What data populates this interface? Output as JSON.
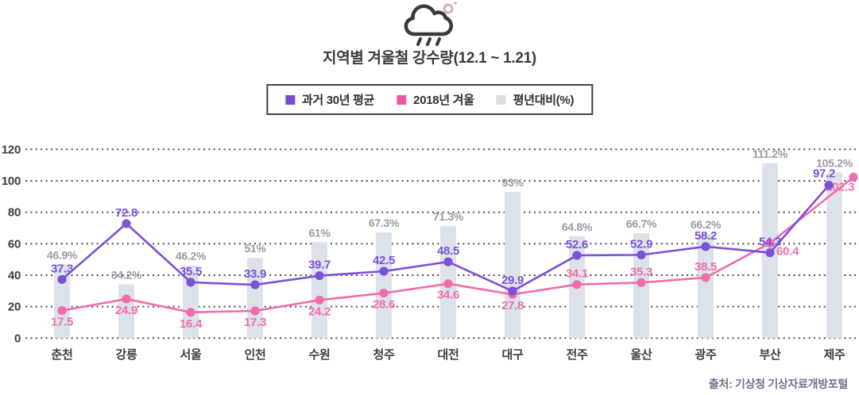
{
  "header": {
    "title": "지역별 겨울철 강수량(12.1 ~ 1.21)"
  },
  "legend": {
    "items": [
      {
        "label": "과거 30년 평균",
        "color": "#7a4ad6",
        "kind": "line-series"
      },
      {
        "label": "2018년 겨울",
        "color": "#ee58a1",
        "kind": "line-series"
      },
      {
        "label": "평년대비(%)",
        "color": "#d9dee6",
        "kind": "bar-series"
      }
    ]
  },
  "source": "출처: 기상청 기상자료개방포털",
  "chart_data": {
    "type": "line+bar combo",
    "title": "지역별 겨울철 강수량(12.1 ~ 1.21)",
    "categories": [
      "춘천",
      "강릉",
      "서울",
      "인천",
      "수원",
      "청주",
      "대전",
      "대구",
      "전주",
      "울산",
      "광주",
      "부산",
      "제주"
    ],
    "series": [
      {
        "name": "과거 30년 평균",
        "type": "line",
        "color": "#7b51d8",
        "values": [
          37.3,
          72.8,
          35.5,
          33.9,
          39.7,
          42.5,
          48.5,
          29.9,
          52.6,
          52.9,
          58.2,
          54.3,
          97.2
        ],
        "labels": [
          "37.3",
          "72.8",
          "35.5",
          "33.9",
          "39.7",
          "42.5",
          "48.5",
          "29.9",
          "52.6",
          "52.9",
          "58.2",
          "54.3",
          "97.2"
        ],
        "label_sides": [
          "above",
          "above",
          "above",
          "above",
          "above",
          "above",
          "above",
          "above",
          "above",
          "above",
          "above",
          "above",
          "above-left"
        ],
        "last_point_dx": -7
      },
      {
        "name": "2018년 겨울",
        "type": "line",
        "color": "#f06dab",
        "values": [
          17.5,
          24.9,
          16.4,
          17.3,
          24.2,
          28.6,
          34.6,
          27.8,
          34.1,
          35.3,
          38.5,
          60.4,
          102.3
        ],
        "labels": [
          "17.5",
          "24.9",
          "16.4",
          "17.3",
          "24.2",
          "28.6",
          "34.6",
          "27.8",
          "34.1",
          "35.3",
          "38.5",
          "60.4",
          "102.3"
        ],
        "label_sides": [
          "below",
          "below",
          "below",
          "below",
          "below",
          "below",
          "below",
          "below",
          "above",
          "above",
          "above",
          "below-right",
          "below-left"
        ],
        "last_point_dx": 24
      },
      {
        "name": "평년대비(%)",
        "type": "bar",
        "color": "#dde2ea",
        "values": [
          46.9,
          34.2,
          46.2,
          51,
          61,
          67.3,
          71.3,
          93,
          64.8,
          66.7,
          66.2,
          111.2,
          105.2
        ],
        "labels": [
          "46.9%",
          "34.2%",
          "46.2%",
          "51%",
          "61%",
          "67.3%",
          "71.3%",
          "93%",
          "64.8%",
          "66.7%",
          "66.2%",
          "111.2%",
          "105.2%"
        ],
        "label_color": "#9b99a3"
      }
    ],
    "ylim": [
      0,
      120
    ],
    "yticks": [
      0,
      20,
      40,
      60,
      80,
      100,
      120
    ],
    "xlabel": "",
    "ylabel": "",
    "grid": "horizontal dotted",
    "grid_color": "#4c4c4c",
    "axis_label_color": "#3e3e3e",
    "legend_position": "top"
  }
}
